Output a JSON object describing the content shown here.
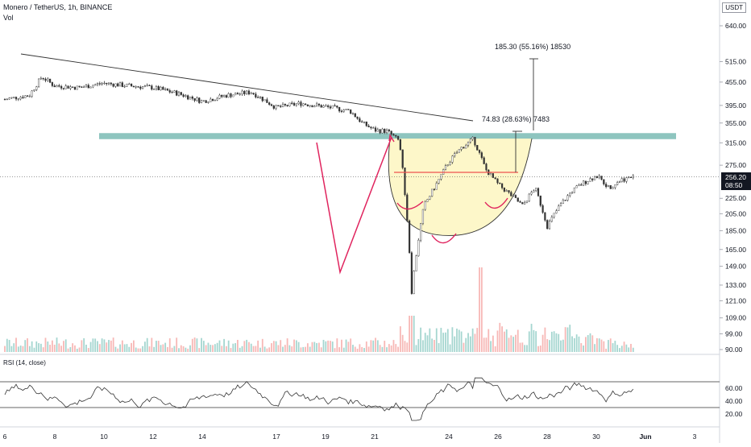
{
  "header": {
    "symbol_line": "Monero / TetherUS, 1h, BINANCE",
    "vol_label": "Vol",
    "currency": "USDT"
  },
  "chart_data": {
    "type": "candlestick",
    "price_scale": "log",
    "price_ticks": [
      640.0,
      515.0,
      455.0,
      395.0,
      355.0,
      315.0,
      275.0,
      225.0,
      205.0,
      185.0,
      165.0,
      149.0,
      133.0,
      121.0,
      109.0,
      99.0,
      90.0
    ],
    "last_price": "256.20",
    "countdown": "08:50",
    "x_ticks": [
      "6",
      "8",
      "10",
      "12",
      "14",
      "17",
      "19",
      "21",
      "24",
      "26",
      "28",
      "30",
      "Jun",
      "3"
    ],
    "price_path": [
      [
        0,
        410
      ],
      [
        1,
        420
      ],
      [
        1.5,
        470
      ],
      [
        2,
        445
      ],
      [
        3,
        440
      ],
      [
        4,
        452
      ],
      [
        5,
        445
      ],
      [
        6,
        440
      ],
      [
        7,
        425
      ],
      [
        8,
        405
      ],
      [
        9,
        420
      ],
      [
        10,
        428
      ],
      [
        11,
        390
      ],
      [
        12,
        400
      ],
      [
        13,
        392
      ],
      [
        14,
        382
      ],
      [
        14.5,
        355
      ],
      [
        15,
        340
      ],
      [
        15.5,
        338
      ],
      [
        16,
        318
      ],
      [
        16.5,
        128
      ],
      [
        17,
        215
      ],
      [
        17.5,
        245
      ],
      [
        18,
        280
      ],
      [
        18.5,
        305
      ],
      [
        19,
        322
      ],
      [
        19.5,
        268
      ],
      [
        20,
        245
      ],
      [
        20.5,
        230
      ],
      [
        21,
        215
      ],
      [
        21.5,
        240
      ],
      [
        22,
        190
      ],
      [
        22.5,
        215
      ],
      [
        23,
        235
      ],
      [
        23.5,
        248
      ],
      [
        24,
        258
      ],
      [
        24.5,
        240
      ],
      [
        25,
        252
      ],
      [
        25.5,
        256
      ]
    ],
    "annotations": {
      "resistance_zone": [
        322,
        334
      ],
      "target_1_label": "74.83 (28.63%) 7483",
      "target_2_label": "185.30 (55.16%) 18530",
      "neckline_price": 268
    },
    "rsi": {
      "label": "RSI (14, close)",
      "ticks": [
        60.0,
        40.0,
        20.0
      ],
      "upper_band": 70,
      "lower_band": 30
    }
  }
}
